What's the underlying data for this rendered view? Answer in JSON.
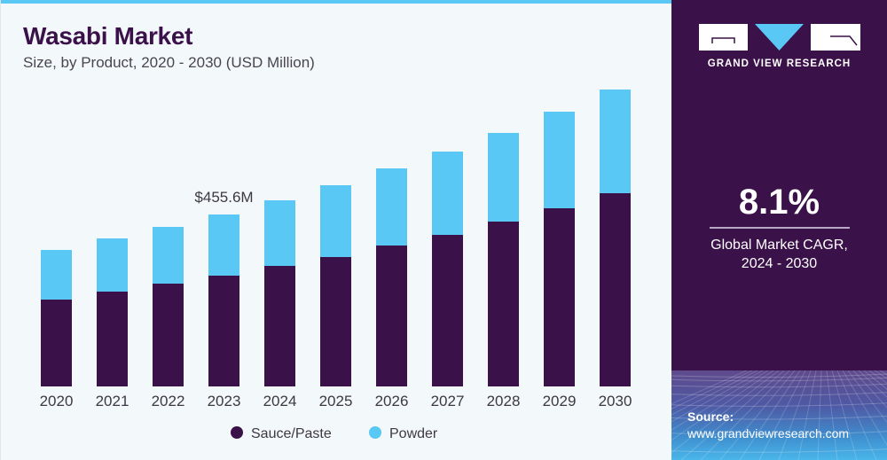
{
  "header": {
    "title": "Wasabi Market",
    "subtitle": "Size, by Product, 2020 - 2030 (USD Million)"
  },
  "brand": {
    "name": "GRAND VIEW RESEARCH",
    "logo_icon": "gvr-logo-icon"
  },
  "highlight": {
    "cagr_value": "8.1%",
    "cagr_label_line1": "Global Market CAGR,",
    "cagr_label_line2": "2024 - 2030"
  },
  "source": {
    "title": "Source:",
    "url": "www.grandviewresearch.com"
  },
  "colors": {
    "sauce_paste": "#3a1149",
    "powder": "#5ac8f4",
    "accent_strip": "#5ac8f4",
    "panel": "#3a1149",
    "background": "#f3f8fb"
  },
  "chart_data": {
    "type": "bar",
    "stacked": true,
    "title": "Wasabi Market",
    "subtitle": "Size, by Product, 2020 - 2030 (USD Million)",
    "xlabel": "",
    "ylabel": "USD Million",
    "categories": [
      "2020",
      "2021",
      "2022",
      "2023",
      "2024",
      "2025",
      "2026",
      "2027",
      "2028",
      "2029",
      "2030"
    ],
    "series": [
      {
        "name": "Sauce/Paste",
        "color": "#3a1149",
        "values": [
          230.2,
          251.3,
          272.4,
          293.6,
          319.4,
          342.9,
          373.4,
          401.6,
          436.8,
          472.1,
          512.0
        ]
      },
      {
        "name": "Powder",
        "color": "#5ac8f4",
        "values": [
          131.5,
          140.9,
          150.3,
          162.0,
          173.8,
          190.2,
          204.3,
          220.7,
          234.9,
          255.9,
          274.7
        ]
      }
    ],
    "ylim": [
      0,
      800
    ],
    "grid": false,
    "legend": {
      "placement": "bottom",
      "entries": [
        "Sauce/Paste",
        "Powder"
      ]
    },
    "annotations": [
      {
        "category": "2023",
        "text": "$455.6M"
      }
    ]
  }
}
